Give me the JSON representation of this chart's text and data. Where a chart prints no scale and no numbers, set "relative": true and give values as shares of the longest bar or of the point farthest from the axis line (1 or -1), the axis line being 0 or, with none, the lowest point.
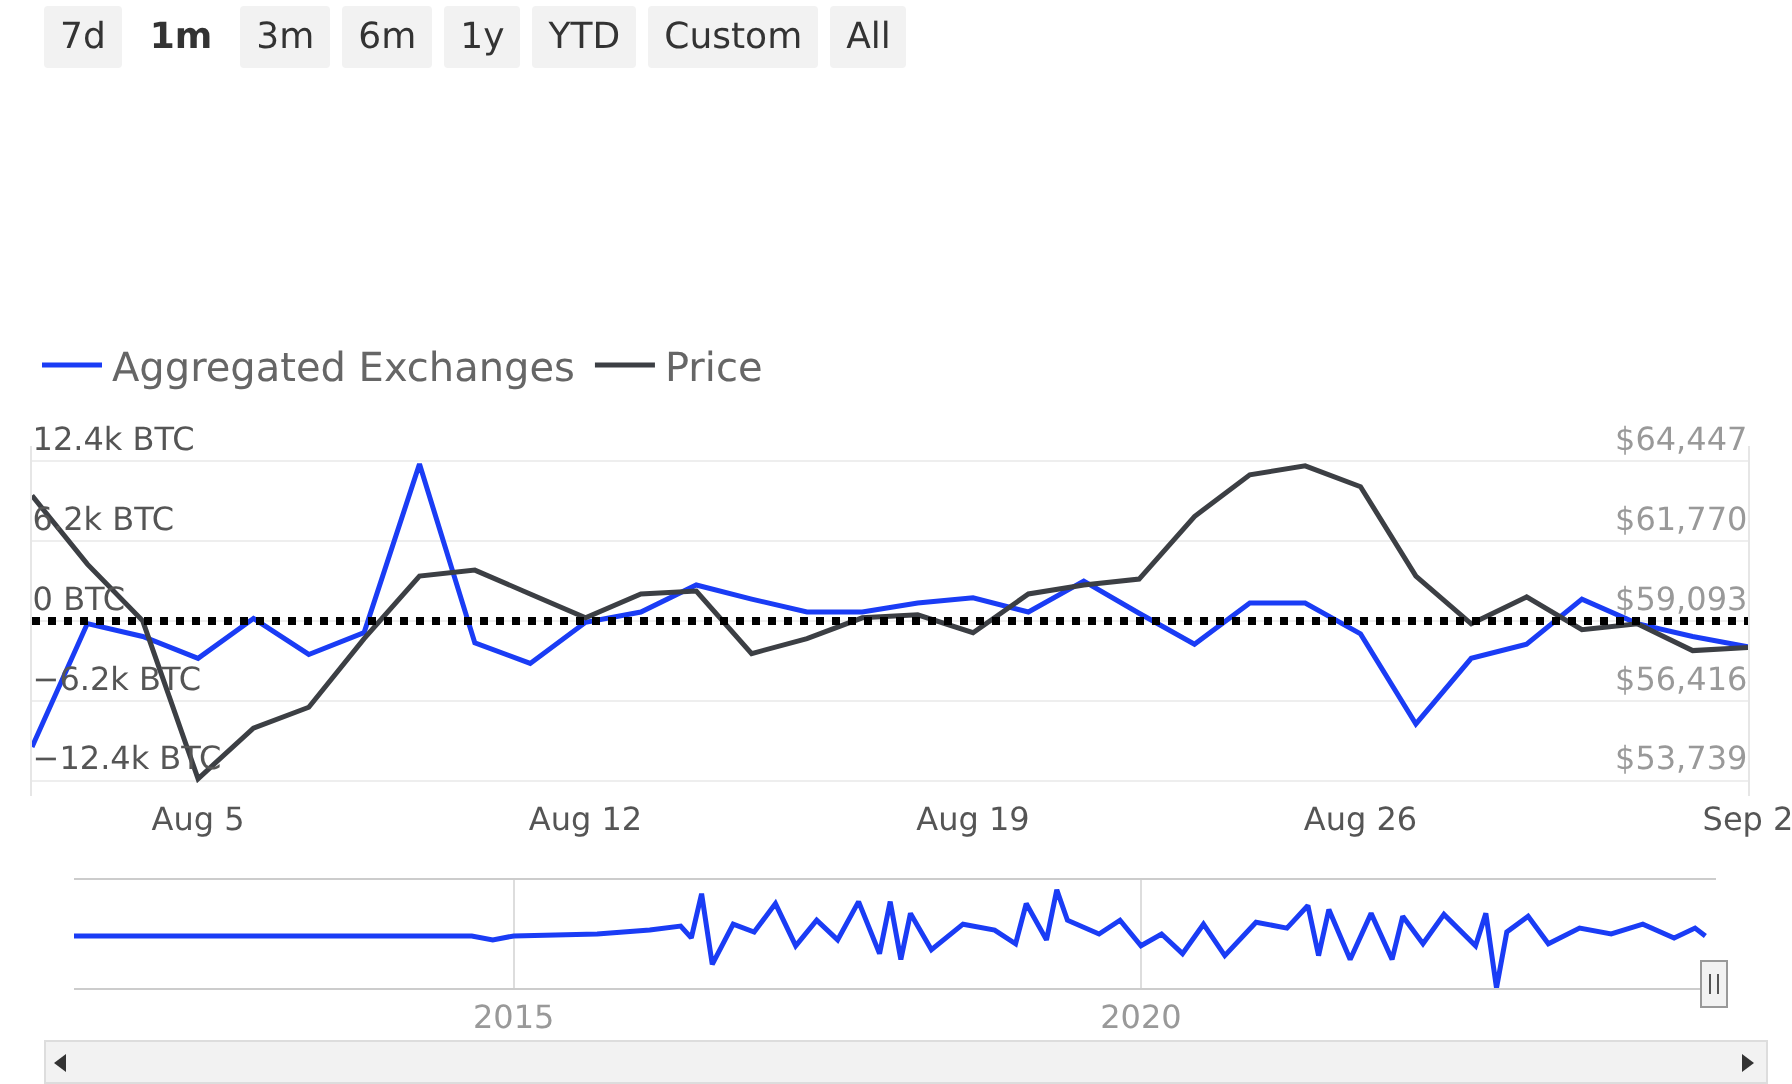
{
  "chart_data": [
    {
      "type": "line",
      "annotations": [
        "7d",
        "1m",
        "3m",
        "6m",
        "1y",
        "YTD",
        "Custom",
        "All"
      ],
      "x": [
        "--08-02",
        "--08-03",
        "--08-04",
        "--08-05",
        "--08-06",
        "--08-07",
        "--08-08",
        "--08-09",
        "--08-10",
        "--08-11",
        "--08-12",
        "--08-13",
        "--08-14",
        "--08-15",
        "--08-16",
        "--08-17",
        "--08-18",
        "--08-19",
        "--08-20",
        "--08-21",
        "--08-22",
        "--08-23",
        "--08-24",
        "--08-25",
        "--08-26",
        "--08-27",
        "--08-28",
        "--08-29",
        "--08-30",
        "--08-31",
        "--09-01",
        "--09-02"
      ],
      "series": [
        {
          "name": "Aggregated Exchanges",
          "color": "#1a3cf5",
          "values": [
            -9.8,
            -0.2,
            -1.2,
            -2.9,
            0.2,
            -2.6,
            -0.9,
            12.2,
            -1.7,
            -3.3,
            -0.1,
            0.7,
            2.8,
            1.7,
            0.7,
            0.7,
            1.4,
            1.8,
            0.7,
            3.1,
            0.6,
            -1.8,
            1.4,
            1.4,
            -1.0,
            -8.0,
            -2.9,
            -1.8,
            1.7,
            -0.2,
            -1.2,
            -2.0
          ]
        },
        {
          "name": "Price",
          "color": "#3c3f44",
          "axis": "y2",
          "values": [
            63300,
            61000,
            59100,
            53800,
            55500,
            56200,
            58500,
            60600,
            60800,
            60000,
            59200,
            60000,
            60100,
            58000,
            58500,
            59200,
            59300,
            58700,
            60000,
            60300,
            60500,
            62600,
            64000,
            64300,
            63600,
            60600,
            59000,
            59900,
            58800,
            59000,
            58100,
            58200
          ]
        }
      ],
      "xlim": [
        "--08-02",
        "--09-02"
      ],
      "xticks": [
        {
          "value": "--08-05",
          "label": "Aug 5"
        },
        {
          "value": "--08-12",
          "label": "Aug 12"
        },
        {
          "value": "--08-19",
          "label": "Aug 19"
        },
        {
          "value": "--08-26",
          "label": "Aug 26"
        },
        {
          "value": "--09-02",
          "label": "Sep 2"
        }
      ],
      "ylim": [
        -13.6,
        13.6
      ],
      "yticks": [
        {
          "value": -12.4,
          "label": "−12.4k BTC"
        },
        {
          "value": -6.2,
          "label": "−6.2k BTC"
        },
        {
          "value": 0,
          "label": "0 BTC"
        },
        {
          "value": 6.2,
          "label": "6.2k BTC"
        },
        {
          "value": 12.4,
          "label": "12.4k BTC"
        }
      ],
      "y2lim": [
        53221,
        64965
      ],
      "y2ticks": [
        {
          "value": 53739,
          "label": "$53,739"
        },
        {
          "value": 56416,
          "label": "$56,416"
        },
        {
          "value": 59093,
          "label": "$59,093"
        },
        {
          "value": 61770,
          "label": "$61,770"
        },
        {
          "value": 64447,
          "label": "$64,447"
        }
      ],
      "ref_lines": [
        {
          "axis": "y",
          "value": 0,
          "color": "#000000",
          "line_style": "dotted"
        }
      ],
      "grid": "y",
      "legend": "top left",
      "marker": "none",
      "line_style": "solid"
    },
    {
      "type": "line",
      "relative": true,
      "grid": "x",
      "tick_labels": "x",
      "x": [
        "2011-07",
        "2014-09",
        "2014-11",
        "2015-01",
        "2015-09",
        "2016-02",
        "2016-05",
        "2016-06",
        "2016-07",
        "2016-08",
        "2016-10",
        "2016-12",
        "2017-02",
        "2017-04",
        "2017-06",
        "2017-08",
        "2017-10",
        "2017-12",
        "2018-01",
        "2018-02",
        "2018-03",
        "2018-05",
        "2018-08",
        "2018-11",
        "2019-01",
        "2019-02",
        "2019-04",
        "2019-05",
        "2019-06",
        "2019-09",
        "2019-11",
        "2020-01",
        "2020-03",
        "2020-05",
        "2020-07",
        "2020-09",
        "2020-12",
        "2021-03",
        "2021-05",
        "2021-06",
        "2021-07",
        "2021-09",
        "2021-11",
        "2022-01",
        "2022-02",
        "2022-04",
        "2022-06",
        "2022-09",
        "2022-10",
        "2022-11",
        "2022-12",
        "2023-02",
        "2023-04",
        "2023-07",
        "2023-10",
        "2024-01",
        "2024-04",
        "2024-06",
        "2024-07"
      ],
      "series": [
        {
          "color": "#1a3cf5",
          "values": [
            0.53,
            0.53,
            0.49,
            0.53,
            0.55,
            0.59,
            0.63,
            0.51,
            0.96,
            0.24,
            0.65,
            0.57,
            0.86,
            0.43,
            0.69,
            0.49,
            0.88,
            0.35,
            0.88,
            0.29,
            0.76,
            0.39,
            0.65,
            0.59,
            0.45,
            0.86,
            0.49,
            1.0,
            0.69,
            0.55,
            0.69,
            0.43,
            0.55,
            0.35,
            0.65,
            0.33,
            0.67,
            0.61,
            0.84,
            0.33,
            0.8,
            0.29,
            0.76,
            0.29,
            0.73,
            0.45,
            0.75,
            0.43,
            0.76,
            0,
            0.57,
            0.73,
            0.45,
            0.61,
            0.55,
            0.65,
            0.51,
            0.61,
            0.53
          ]
        }
      ],
      "xlim": [
        "2011-07",
        "2024-08"
      ],
      "xticks": [
        {
          "value": "2015-01",
          "label": "2015"
        },
        {
          "value": "2020-01",
          "label": "2020"
        }
      ],
      "marker": "none",
      "line_style": "solid"
    }
  ]
}
